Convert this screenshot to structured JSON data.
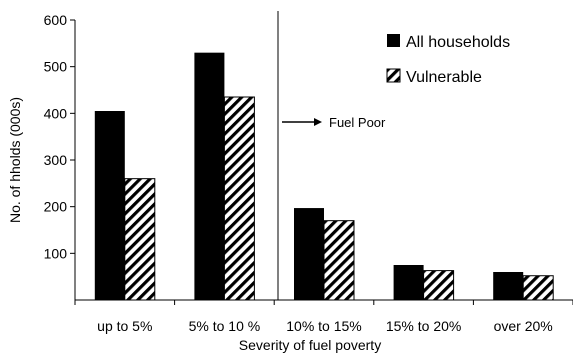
{
  "chart_data": {
    "type": "bar",
    "categories": [
      "up to 5%",
      "5% to 10 %",
      "10% to 15%",
      "15% to 20%",
      "over 20%"
    ],
    "series": [
      {
        "name": "All households",
        "values": [
          405,
          530,
          197,
          75,
          60
        ]
      },
      {
        "name": "Vulnerable",
        "values": [
          260,
          435,
          170,
          63,
          52
        ]
      }
    ],
    "xlabel": "Severity of fuel poverty",
    "ylabel": "No. of hholds (000s)",
    "ylim": [
      0,
      600
    ],
    "yticks": [
      "100",
      "200",
      "300",
      "400",
      "500",
      "600"
    ],
    "ytick_values": [
      100,
      200,
      300,
      400,
      500,
      600
    ],
    "grid": false,
    "legend_position": "top-right",
    "annotation": {
      "text": "Fuel Poor",
      "after_category": "5% to 10 %"
    },
    "colors": {
      "series_1": "#000000",
      "series_2": "hatched black/white"
    }
  }
}
